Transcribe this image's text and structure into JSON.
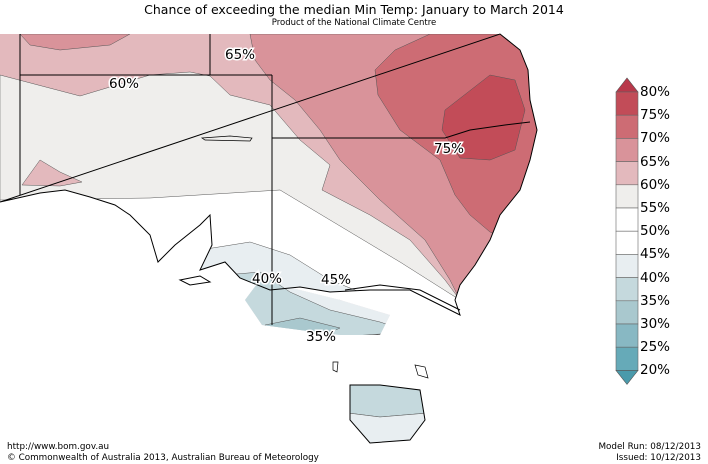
{
  "header": {
    "title": "Chance of exceeding the median Min Temp: January to March 2014",
    "subtitle": "Product of the National Climate Centre"
  },
  "map_labels": [
    "65%",
    "60%",
    "75%",
    "40%",
    "45%",
    "35%"
  ],
  "legend": {
    "labels": [
      "80%",
      "75%",
      "70%",
      "65%",
      "60%",
      "55%",
      "50%",
      "45%",
      "40%",
      "35%",
      "30%",
      "25%",
      "20%"
    ],
    "colors": [
      "#b8384a",
      "#c24c58",
      "#cd6c74",
      "#d9939a",
      "#e3b9bd",
      "#efeeec",
      "#ffffff",
      "#ffffff",
      "#e8eef1",
      "#c5d9dd",
      "#a9c8ce",
      "#88b8c3",
      "#66aab8",
      "#4a9aab"
    ]
  },
  "footer": {
    "url": "http://www.bom.gov.au",
    "copyright": "©  Commonwealth of Australia 2013, Australian Bureau of Meteorology",
    "model_run": "Model Run: 08/12/2013",
    "issued": "Issued: 10/12/2013"
  }
}
